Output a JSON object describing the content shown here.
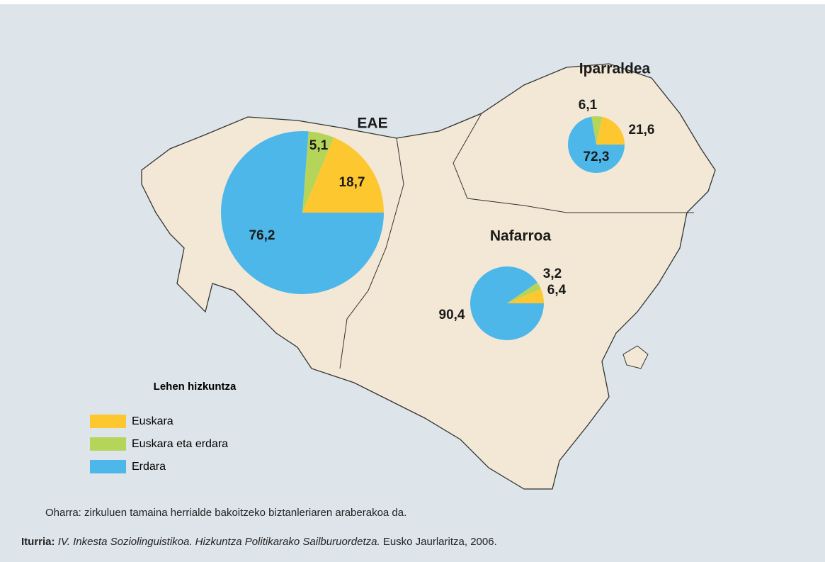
{
  "chart_data": [
    {
      "type": "pie",
      "title": "EAE",
      "values": [
        18.7,
        5.1,
        76.2
      ],
      "value_labels": [
        "18,7",
        "5,1",
        "76,2"
      ]
    },
    {
      "type": "pie",
      "title": "Iparraldea",
      "values": [
        21.6,
        6.1,
        72.3
      ],
      "value_labels": [
        "21,6",
        "6,1",
        "72,3"
      ]
    },
    {
      "type": "pie",
      "title": "Nafarroa",
      "values": [
        6.4,
        3.2,
        90.4
      ],
      "value_labels": [
        "6,4",
        "3,2",
        "90,4"
      ]
    }
  ],
  "legend": {
    "title": "Lehen hizkuntza",
    "items": [
      {
        "name": "Euskara",
        "color": "#fdc82f"
      },
      {
        "name": "Euskara eta erdara",
        "color": "#b5d55a"
      },
      {
        "name": "Erdara",
        "color": "#4db7e9"
      }
    ]
  },
  "note": "Oharra: zirkuluen tamaina herrialde bakoitzeko biztanleriaren araberakoa da.",
  "source": {
    "label": "Iturria:",
    "title": "IV. Inkesta Soziolinguistikoa. Hizkuntza Politikarako Sailburuordetza.",
    "publisher": "Eusko Jaurlaritza, 2006."
  }
}
